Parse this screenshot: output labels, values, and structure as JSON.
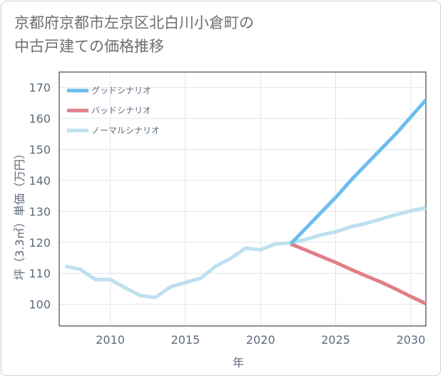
{
  "title_line1": "京都府京都市左京区北白川小倉町の",
  "title_line2": "中古戸建ての価格推移",
  "chart_data": {
    "type": "line",
    "xlabel": "年",
    "ylabel": "坪（3.3㎡）単価（万円）",
    "xlim": [
      2006.6,
      2031
    ],
    "ylim": [
      93,
      175
    ],
    "xticks": [
      2010,
      2015,
      2020,
      2025,
      2030
    ],
    "yticks": [
      100,
      110,
      120,
      130,
      140,
      150,
      160,
      170
    ],
    "grid": true,
    "legend_position": "top-left",
    "series": [
      {
        "name": "グッドシナリオ",
        "color": "#6cbdee",
        "x": [
          2022,
          2023,
          2024,
          2025,
          2026,
          2027,
          2028,
          2029,
          2030,
          2031
        ],
        "values": [
          119.5,
          124.5,
          129.5,
          134.5,
          140,
          145,
          150,
          155,
          160.5,
          166
        ]
      },
      {
        "name": "バッドシナリオ",
        "color": "#e07f88",
        "x": [
          2022,
          2023,
          2024,
          2025,
          2026,
          2027,
          2028,
          2029,
          2030,
          2031
        ],
        "values": [
          119.5,
          117.5,
          115.5,
          113.5,
          111.3,
          109.2,
          107.2,
          104.9,
          102.5,
          100.2
        ]
      },
      {
        "name": "ノーマルシナリオ",
        "color": "#bde0ef",
        "x": [
          2007,
          2008,
          2009,
          2010,
          2011,
          2012,
          2013,
          2014,
          2015,
          2016,
          2017,
          2018,
          2019,
          2020,
          2021,
          2022,
          2023,
          2024,
          2025,
          2026,
          2027,
          2028,
          2029,
          2030,
          2031
        ],
        "values": [
          112.3,
          111.3,
          108,
          108,
          105.3,
          102.8,
          102.2,
          105.6,
          107,
          108.4,
          112.2,
          114.8,
          118.1,
          117.6,
          119.5,
          119.8,
          120.9,
          122.4,
          123.4,
          125,
          126.1,
          127.5,
          128.9,
          130.2,
          131.2
        ]
      }
    ]
  }
}
